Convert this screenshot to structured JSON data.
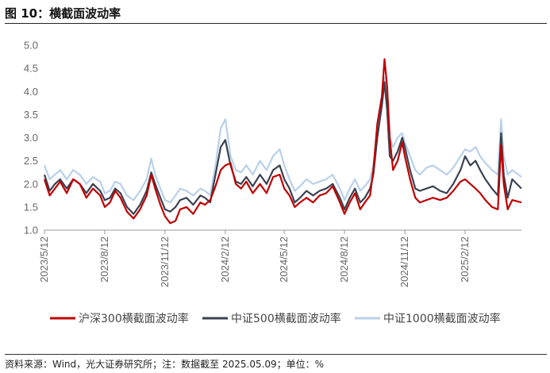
{
  "header": {
    "title": "图 10：横截面波动率"
  },
  "footer": {
    "source": "资料来源：Wind，光大证券研究所；注：数据截至 2025.05.09；单位：%"
  },
  "chart_data": {
    "type": "line",
    "title": "图 10：横截面波动率",
    "xlabel": "",
    "ylabel": "",
    "ylim": [
      1.0,
      5.0
    ],
    "yticks": [
      "1.0",
      "1.5",
      "2.0",
      "2.5",
      "3.0",
      "3.5",
      "4.0",
      "4.5",
      "5.0"
    ],
    "xrange": [
      "2023-05-12",
      "2025-05-09"
    ],
    "xticks": [
      {
        "date": "2023-05-12",
        "label": "2023/5/12"
      },
      {
        "date": "2023-08-12",
        "label": "2023/8/12"
      },
      {
        "date": "2023-11-12",
        "label": "2023/11/12"
      },
      {
        "date": "2024-02-12",
        "label": "2024/2/12"
      },
      {
        "date": "2024-05-12",
        "label": "2024/5/12"
      },
      {
        "date": "2024-08-12",
        "label": "2024/8/12"
      },
      {
        "date": "2024-11-12",
        "label": "2024/11/12"
      },
      {
        "date": "2025-02-12",
        "label": "2025/2/12"
      }
    ],
    "grid": false,
    "legend": "bottom",
    "series": [
      {
        "name": "沪深300横截面波动率",
        "color": "#c00000",
        "points": [
          [
            "2023-05-12",
            2.1
          ],
          [
            "2023-05-20",
            1.75
          ],
          [
            "2023-05-28",
            1.9
          ],
          [
            "2023-06-05",
            2.05
          ],
          [
            "2023-06-15",
            1.8
          ],
          [
            "2023-06-25",
            2.1
          ],
          [
            "2023-07-05",
            2.0
          ],
          [
            "2023-07-15",
            1.7
          ],
          [
            "2023-07-25",
            1.9
          ],
          [
            "2023-08-05",
            1.75
          ],
          [
            "2023-08-12",
            1.5
          ],
          [
            "2023-08-20",
            1.6
          ],
          [
            "2023-08-28",
            1.85
          ],
          [
            "2023-09-05",
            1.7
          ],
          [
            "2023-09-15",
            1.4
          ],
          [
            "2023-09-25",
            1.25
          ],
          [
            "2023-10-05",
            1.45
          ],
          [
            "2023-10-15",
            1.75
          ],
          [
            "2023-10-22",
            2.2
          ],
          [
            "2023-10-28",
            1.9
          ],
          [
            "2023-11-05",
            1.55
          ],
          [
            "2023-11-12",
            1.3
          ],
          [
            "2023-11-20",
            1.15
          ],
          [
            "2023-11-28",
            1.2
          ],
          [
            "2023-12-05",
            1.45
          ],
          [
            "2023-12-15",
            1.5
          ],
          [
            "2023-12-25",
            1.35
          ],
          [
            "2024-01-05",
            1.6
          ],
          [
            "2024-01-12",
            1.55
          ],
          [
            "2024-01-20",
            1.65
          ],
          [
            "2024-01-28",
            1.95
          ],
          [
            "2024-02-05",
            2.3
          ],
          [
            "2024-02-12",
            2.4
          ],
          [
            "2024-02-20",
            2.45
          ],
          [
            "2024-02-28",
            2.0
          ],
          [
            "2024-03-07",
            1.9
          ],
          [
            "2024-03-15",
            2.05
          ],
          [
            "2024-03-25",
            1.8
          ],
          [
            "2024-04-05",
            2.0
          ],
          [
            "2024-04-15",
            1.8
          ],
          [
            "2024-04-25",
            2.15
          ],
          [
            "2024-05-05",
            2.2
          ],
          [
            "2024-05-12",
            1.9
          ],
          [
            "2024-05-20",
            1.75
          ],
          [
            "2024-05-28",
            1.5
          ],
          [
            "2024-06-05",
            1.6
          ],
          [
            "2024-06-15",
            1.7
          ],
          [
            "2024-06-25",
            1.6
          ],
          [
            "2024-07-05",
            1.75
          ],
          [
            "2024-07-15",
            1.8
          ],
          [
            "2024-07-25",
            1.95
          ],
          [
            "2024-08-05",
            1.6
          ],
          [
            "2024-08-12",
            1.35
          ],
          [
            "2024-08-20",
            1.6
          ],
          [
            "2024-08-28",
            1.8
          ],
          [
            "2024-09-05",
            1.45
          ],
          [
            "2024-09-12",
            1.6
          ],
          [
            "2024-09-20",
            1.75
          ],
          [
            "2024-09-25",
            2.3
          ],
          [
            "2024-10-01",
            3.3
          ],
          [
            "2024-10-08",
            3.9
          ],
          [
            "2024-10-12",
            4.7
          ],
          [
            "2024-10-16",
            4.1
          ],
          [
            "2024-10-20",
            3.0
          ],
          [
            "2024-10-25",
            2.3
          ],
          [
            "2024-11-01",
            2.5
          ],
          [
            "2024-11-08",
            2.9
          ],
          [
            "2024-11-12",
            2.6
          ],
          [
            "2024-11-20",
            2.1
          ],
          [
            "2024-11-28",
            1.7
          ],
          [
            "2024-12-05",
            1.6
          ],
          [
            "2024-12-15",
            1.65
          ],
          [
            "2024-12-25",
            1.7
          ],
          [
            "2025-01-05",
            1.65
          ],
          [
            "2025-01-15",
            1.7
          ],
          [
            "2025-01-25",
            1.85
          ],
          [
            "2025-02-05",
            2.05
          ],
          [
            "2025-02-12",
            2.1
          ],
          [
            "2025-02-20",
            2.0
          ],
          [
            "2025-02-28",
            1.9
          ],
          [
            "2025-03-07",
            1.8
          ],
          [
            "2025-03-15",
            1.65
          ],
          [
            "2025-03-25",
            1.5
          ],
          [
            "2025-04-03",
            1.45
          ],
          [
            "2025-04-08",
            2.85
          ],
          [
            "2025-04-12",
            2.0
          ],
          [
            "2025-04-18",
            1.45
          ],
          [
            "2025-04-25",
            1.65
          ],
          [
            "2025-05-09",
            1.6
          ]
        ]
      },
      {
        "name": "中证500横截面波动率",
        "color": "#3a4150",
        "points": [
          [
            "2023-05-12",
            2.2
          ],
          [
            "2023-05-20",
            1.85
          ],
          [
            "2023-05-28",
            2.0
          ],
          [
            "2023-06-05",
            2.1
          ],
          [
            "2023-06-15",
            1.9
          ],
          [
            "2023-06-25",
            2.1
          ],
          [
            "2023-07-05",
            2.0
          ],
          [
            "2023-07-15",
            1.8
          ],
          [
            "2023-07-25",
            2.0
          ],
          [
            "2023-08-05",
            1.85
          ],
          [
            "2023-08-12",
            1.65
          ],
          [
            "2023-08-20",
            1.7
          ],
          [
            "2023-08-28",
            1.9
          ],
          [
            "2023-09-05",
            1.8
          ],
          [
            "2023-09-15",
            1.5
          ],
          [
            "2023-09-25",
            1.35
          ],
          [
            "2023-10-05",
            1.55
          ],
          [
            "2023-10-15",
            1.85
          ],
          [
            "2023-10-22",
            2.25
          ],
          [
            "2023-10-28",
            2.0
          ],
          [
            "2023-11-05",
            1.7
          ],
          [
            "2023-11-12",
            1.45
          ],
          [
            "2023-11-20",
            1.4
          ],
          [
            "2023-11-28",
            1.5
          ],
          [
            "2023-12-05",
            1.65
          ],
          [
            "2023-12-15",
            1.7
          ],
          [
            "2023-12-25",
            1.55
          ],
          [
            "2024-01-05",
            1.75
          ],
          [
            "2024-01-12",
            1.7
          ],
          [
            "2024-01-20",
            1.6
          ],
          [
            "2024-01-28",
            2.2
          ],
          [
            "2024-02-05",
            2.8
          ],
          [
            "2024-02-12",
            2.95
          ],
          [
            "2024-02-20",
            2.4
          ],
          [
            "2024-02-28",
            2.05
          ],
          [
            "2024-03-07",
            2.0
          ],
          [
            "2024-03-15",
            2.15
          ],
          [
            "2024-03-25",
            1.95
          ],
          [
            "2024-04-05",
            2.2
          ],
          [
            "2024-04-15",
            2.0
          ],
          [
            "2024-04-25",
            2.3
          ],
          [
            "2024-05-05",
            2.4
          ],
          [
            "2024-05-12",
            2.1
          ],
          [
            "2024-05-20",
            1.9
          ],
          [
            "2024-05-28",
            1.6
          ],
          [
            "2024-06-05",
            1.7
          ],
          [
            "2024-06-15",
            1.85
          ],
          [
            "2024-06-25",
            1.75
          ],
          [
            "2024-07-05",
            1.85
          ],
          [
            "2024-07-15",
            1.9
          ],
          [
            "2024-07-25",
            2.0
          ],
          [
            "2024-08-05",
            1.7
          ],
          [
            "2024-08-12",
            1.45
          ],
          [
            "2024-08-20",
            1.7
          ],
          [
            "2024-08-28",
            1.9
          ],
          [
            "2024-09-05",
            1.6
          ],
          [
            "2024-09-12",
            1.7
          ],
          [
            "2024-09-20",
            1.9
          ],
          [
            "2024-09-25",
            2.2
          ],
          [
            "2024-10-01",
            3.0
          ],
          [
            "2024-10-08",
            3.7
          ],
          [
            "2024-10-12",
            4.2
          ],
          [
            "2024-10-16",
            3.6
          ],
          [
            "2024-10-20",
            2.6
          ],
          [
            "2024-10-25",
            2.5
          ],
          [
            "2024-11-01",
            2.7
          ],
          [
            "2024-11-08",
            3.0
          ],
          [
            "2024-11-12",
            2.8
          ],
          [
            "2024-11-20",
            2.3
          ],
          [
            "2024-11-28",
            1.9
          ],
          [
            "2024-12-05",
            1.85
          ],
          [
            "2024-12-15",
            1.9
          ],
          [
            "2024-12-25",
            1.95
          ],
          [
            "2025-01-05",
            1.85
          ],
          [
            "2025-01-15",
            1.8
          ],
          [
            "2025-01-25",
            2.0
          ],
          [
            "2025-02-05",
            2.3
          ],
          [
            "2025-02-12",
            2.6
          ],
          [
            "2025-02-20",
            2.4
          ],
          [
            "2025-02-28",
            2.5
          ],
          [
            "2025-03-07",
            2.3
          ],
          [
            "2025-03-15",
            2.1
          ],
          [
            "2025-03-25",
            1.9
          ],
          [
            "2025-04-03",
            1.75
          ],
          [
            "2025-04-08",
            3.1
          ],
          [
            "2025-04-12",
            2.2
          ],
          [
            "2025-04-18",
            1.7
          ],
          [
            "2025-04-25",
            2.1
          ],
          [
            "2025-05-09",
            1.9
          ]
        ]
      },
      {
        "name": "中证1000横截面波动率",
        "color": "#b8d0ea",
        "points": [
          [
            "2023-05-12",
            2.4
          ],
          [
            "2023-05-20",
            2.1
          ],
          [
            "2023-05-28",
            2.2
          ],
          [
            "2023-06-05",
            2.3
          ],
          [
            "2023-06-15",
            2.1
          ],
          [
            "2023-06-25",
            2.3
          ],
          [
            "2023-07-05",
            2.2
          ],
          [
            "2023-07-15",
            2.0
          ],
          [
            "2023-07-25",
            2.15
          ],
          [
            "2023-08-05",
            2.05
          ],
          [
            "2023-08-12",
            1.8
          ],
          [
            "2023-08-20",
            1.85
          ],
          [
            "2023-08-28",
            2.05
          ],
          [
            "2023-09-05",
            2.0
          ],
          [
            "2023-09-15",
            1.75
          ],
          [
            "2023-09-25",
            1.65
          ],
          [
            "2023-10-05",
            1.85
          ],
          [
            "2023-10-15",
            2.1
          ],
          [
            "2023-10-22",
            2.55
          ],
          [
            "2023-10-28",
            2.2
          ],
          [
            "2023-11-05",
            1.9
          ],
          [
            "2023-11-12",
            1.65
          ],
          [
            "2023-11-20",
            1.6
          ],
          [
            "2023-11-28",
            1.75
          ],
          [
            "2023-12-05",
            1.9
          ],
          [
            "2023-12-15",
            1.85
          ],
          [
            "2023-12-25",
            1.75
          ],
          [
            "2024-01-05",
            1.9
          ],
          [
            "2024-01-12",
            1.85
          ],
          [
            "2024-01-20",
            1.75
          ],
          [
            "2024-01-28",
            2.4
          ],
          [
            "2024-02-05",
            3.2
          ],
          [
            "2024-02-12",
            3.4
          ],
          [
            "2024-02-20",
            2.6
          ],
          [
            "2024-02-28",
            2.3
          ],
          [
            "2024-03-07",
            2.25
          ],
          [
            "2024-03-15",
            2.4
          ],
          [
            "2024-03-25",
            2.2
          ],
          [
            "2024-04-05",
            2.5
          ],
          [
            "2024-04-15",
            2.3
          ],
          [
            "2024-04-25",
            2.6
          ],
          [
            "2024-05-05",
            2.75
          ],
          [
            "2024-05-12",
            2.4
          ],
          [
            "2024-05-20",
            2.1
          ],
          [
            "2024-05-28",
            1.85
          ],
          [
            "2024-06-05",
            1.95
          ],
          [
            "2024-06-15",
            2.1
          ],
          [
            "2024-06-25",
            2.0
          ],
          [
            "2024-07-05",
            2.05
          ],
          [
            "2024-07-15",
            2.1
          ],
          [
            "2024-07-25",
            2.2
          ],
          [
            "2024-08-05",
            1.9
          ],
          [
            "2024-08-12",
            1.65
          ],
          [
            "2024-08-20",
            1.9
          ],
          [
            "2024-08-28",
            2.1
          ],
          [
            "2024-09-05",
            1.85
          ],
          [
            "2024-09-12",
            1.95
          ],
          [
            "2024-09-20",
            2.1
          ],
          [
            "2024-09-25",
            2.4
          ],
          [
            "2024-10-01",
            3.1
          ],
          [
            "2024-10-08",
            3.7
          ],
          [
            "2024-10-12",
            4.3
          ],
          [
            "2024-10-16",
            3.8
          ],
          [
            "2024-10-20",
            3.0
          ],
          [
            "2024-10-25",
            2.8
          ],
          [
            "2024-11-01",
            3.0
          ],
          [
            "2024-11-08",
            3.1
          ],
          [
            "2024-11-12",
            2.9
          ],
          [
            "2024-11-20",
            2.6
          ],
          [
            "2024-11-28",
            2.3
          ],
          [
            "2024-12-05",
            2.2
          ],
          [
            "2024-12-15",
            2.35
          ],
          [
            "2024-12-25",
            2.4
          ],
          [
            "2025-01-05",
            2.3
          ],
          [
            "2025-01-15",
            2.2
          ],
          [
            "2025-01-25",
            2.35
          ],
          [
            "2025-02-05",
            2.6
          ],
          [
            "2025-02-12",
            2.75
          ],
          [
            "2025-02-20",
            2.7
          ],
          [
            "2025-02-28",
            2.8
          ],
          [
            "2025-03-07",
            2.6
          ],
          [
            "2025-03-15",
            2.45
          ],
          [
            "2025-03-25",
            2.3
          ],
          [
            "2025-04-03",
            2.2
          ],
          [
            "2025-04-08",
            3.4
          ],
          [
            "2025-04-12",
            2.6
          ],
          [
            "2025-04-18",
            2.2
          ],
          [
            "2025-04-25",
            2.3
          ],
          [
            "2025-05-09",
            2.15
          ]
        ]
      }
    ]
  }
}
